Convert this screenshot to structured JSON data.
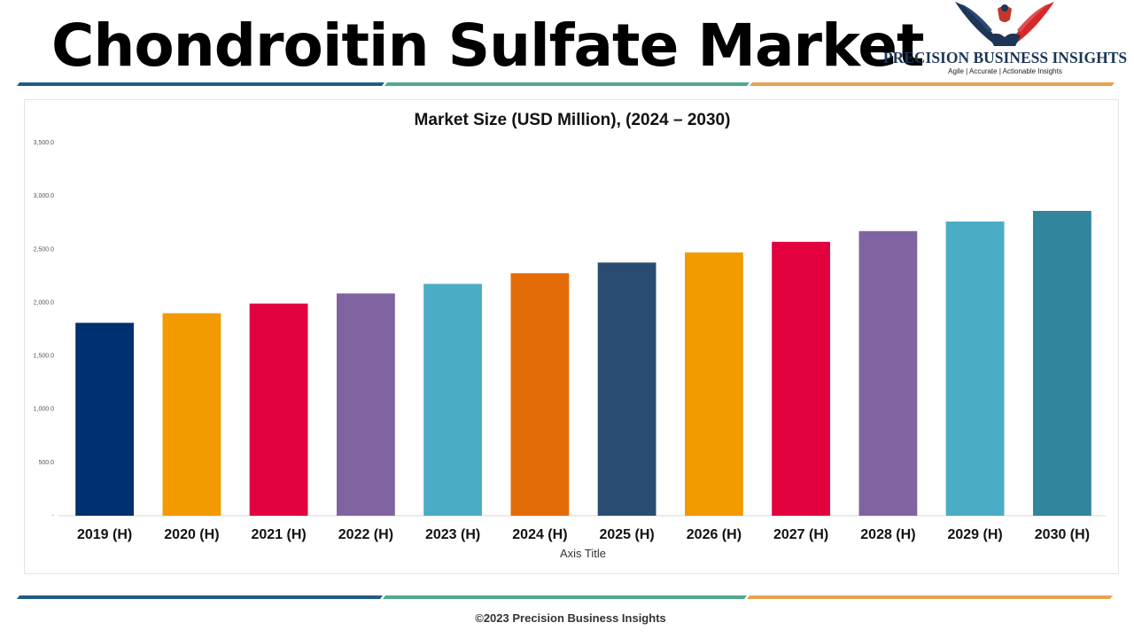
{
  "page": {
    "title": "Chondroitin Sulfate Market",
    "footer": "©2023 Precision Business Insights"
  },
  "logo": {
    "name": "PRECISION BUSINESS INSIGHTS",
    "tagline": "Agile | Accurate | Actionable Insights",
    "colors": {
      "navy": "#1d3557",
      "red": "#d62828"
    },
    "icon": "eagle-handshake-logo-icon"
  },
  "stripe_colors": [
    "#1f5c85",
    "#4fa98a",
    "#e8a24e"
  ],
  "chart_data": {
    "type": "bar",
    "title": "Market Size (USD Million), (2024 – 2030)",
    "xlabel": "Axis Title",
    "ylabel": "",
    "ylim": [
      0,
      3500
    ],
    "y_ticks": [
      {
        "value": 0,
        "label": "-"
      },
      {
        "value": 500,
        "label": "500.0"
      },
      {
        "value": 1000,
        "label": "1,000.0"
      },
      {
        "value": 1500,
        "label": "1,500.0"
      },
      {
        "value": 2000,
        "label": "2,000.0"
      },
      {
        "value": 2500,
        "label": "2,500.0"
      },
      {
        "value": 3000,
        "label": "3,000.0"
      },
      {
        "value": 3500,
        "label": "3,500.0"
      }
    ],
    "grid": false,
    "legend": "none",
    "categories": [
      "2019 (H)",
      "2020 (H)",
      "2021 (H)",
      "2022 (H)",
      "2023 (H)",
      "2024 (H)",
      "2025 (H)",
      "2026 (H)",
      "2027 (H)",
      "2028 (H)",
      "2029 (H)",
      "2030 (H)"
    ],
    "values": [
      1810,
      1900,
      1990,
      2085,
      2175,
      2275,
      2375,
      2470,
      2570,
      2670,
      2760,
      2860
    ],
    "colors": [
      "#003070",
      "#f29a00",
      "#e3003f",
      "#8064a2",
      "#4bacc6",
      "#e36c09",
      "#2b4c72",
      "#f29a00",
      "#e3003f",
      "#8064a2",
      "#4bacc6",
      "#31859c"
    ]
  }
}
